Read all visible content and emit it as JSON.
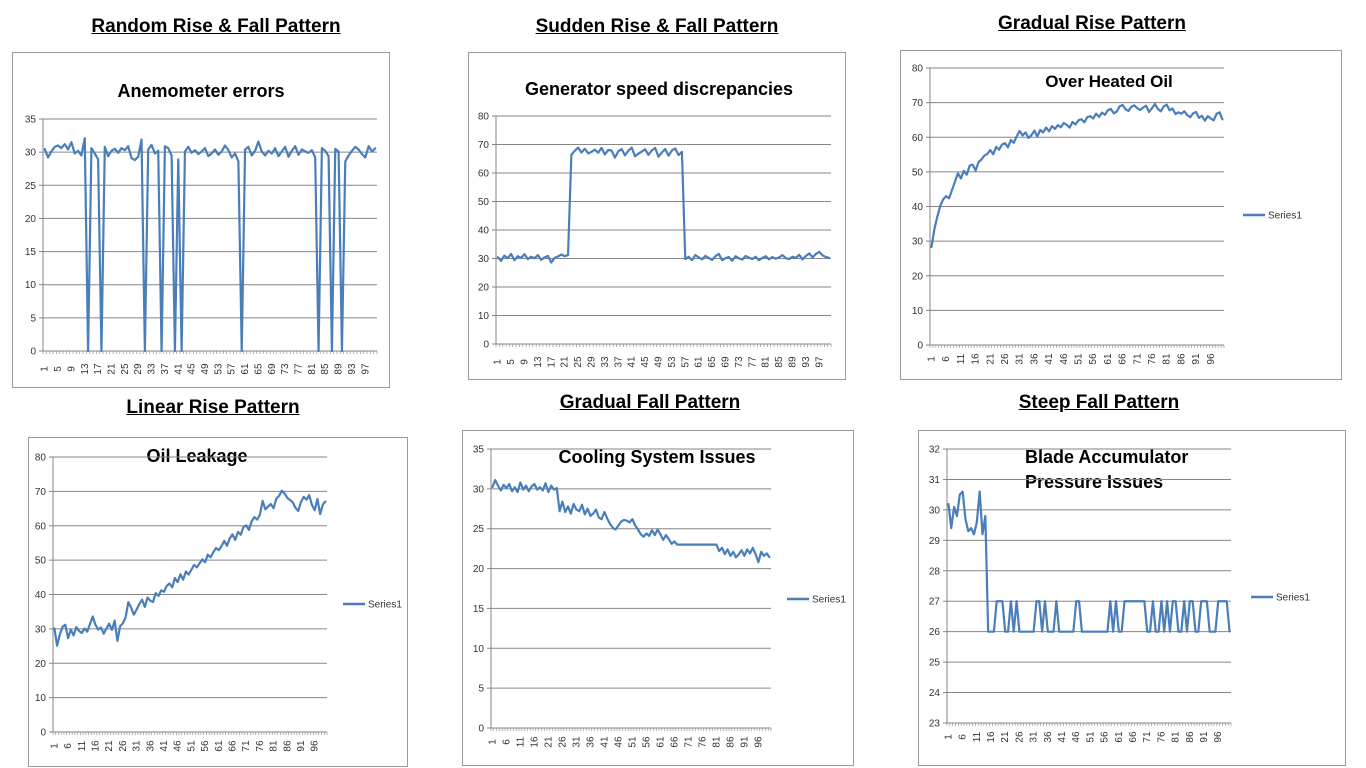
{
  "headings": [
    "Random Rise & Fall Pattern",
    "Sudden Rise & Fall Pattern",
    "Gradual Rise Pattern",
    "Linear Rise Pattern",
    "Gradual Fall Pattern",
    "Steep Fall Pattern"
  ],
  "colors": {
    "line": "#4a7ebb",
    "grid": "#868686",
    "axis": "#868686",
    "border": "#9a9a9a"
  },
  "chart_data": [
    {
      "type": "line",
      "title": "Anemometer errors",
      "ylim": [
        0,
        35
      ],
      "yticks": [
        0,
        5,
        10,
        15,
        20,
        25,
        30,
        35
      ],
      "n": 100,
      "xticks": [
        1,
        5,
        9,
        13,
        17,
        21,
        25,
        29,
        33,
        37,
        41,
        45,
        49,
        53,
        57,
        61,
        65,
        69,
        73,
        77,
        81,
        85,
        89,
        93,
        97
      ],
      "legend": null,
      "grid": true,
      "values": [
        30.5,
        29.2,
        30.1,
        30.8,
        31.0,
        30.6,
        31.2,
        30.4,
        31.5,
        29.8,
        30.2,
        29.5,
        32.1,
        0,
        30.6,
        29.8,
        28.9,
        0,
        30.8,
        29.4,
        30.2,
        30.5,
        29.9,
        30.6,
        30.3,
        30.9,
        29.1,
        28.8,
        29.3,
        31.9,
        0,
        30.4,
        31.1,
        29.8,
        30.2,
        0,
        30.9,
        30.6,
        29.5,
        0,
        28.9,
        0,
        30.1,
        30.8,
        29.9,
        30.3,
        29.7,
        30.1,
        30.6,
        29.4,
        29.8,
        30.4,
        29.6,
        30.1,
        31.0,
        30.3,
        29.2,
        29.8,
        28.6,
        0,
        30.4,
        30.8,
        29.5,
        30.2,
        31.6,
        30.1,
        29.5,
        30.2,
        29.8,
        30.6,
        29.4,
        30.1,
        30.8,
        29.3,
        30.2,
        30.9,
        29.6,
        30.4,
        30.1,
        29.9,
        30.3,
        29.2,
        0,
        30.6,
        30.2,
        29.4,
        0,
        30.5,
        30.1,
        0,
        28.6,
        29.5,
        30.2,
        30.8,
        30.4,
        29.7,
        29.2,
        30.9,
        30.1,
        30.6
      ]
    },
    {
      "type": "line",
      "title": "Generator speed discrepancies",
      "ylim": [
        0,
        80
      ],
      "yticks": [
        0,
        10,
        20,
        30,
        40,
        50,
        60,
        70,
        80
      ],
      "n": 100,
      "xticks": [
        1,
        5,
        9,
        13,
        17,
        21,
        25,
        29,
        33,
        37,
        41,
        45,
        49,
        53,
        57,
        61,
        65,
        69,
        73,
        77,
        81,
        85,
        89,
        93,
        97
      ],
      "legend": null,
      "grid": true,
      "values": [
        30.5,
        29.2,
        31.0,
        30.1,
        31.6,
        29.4,
        30.8,
        30.2,
        31.5,
        29.8,
        30.6,
        30.1,
        31.2,
        29.5,
        30.4,
        30.9,
        28.6,
        30.2,
        30.7,
        31.4,
        30.8,
        31.2,
        66.4,
        67.8,
        68.9,
        67.2,
        68.5,
        66.9,
        67.4,
        68.2,
        67.1,
        68.8,
        66.5,
        68.1,
        67.9,
        65.4,
        67.6,
        68.4,
        66.2,
        67.8,
        68.9,
        65.9,
        66.8,
        67.5,
        68.3,
        66.4,
        67.9,
        68.8,
        65.7,
        67.2,
        68.4,
        66.1,
        67.9,
        68.6,
        66.3,
        67.4,
        29.8,
        30.6,
        29.4,
        31.2,
        30.4,
        29.7,
        30.9,
        30.2,
        29.5,
        30.8,
        31.6,
        29.4,
        30.1,
        30.5,
        29.2,
        30.8,
        30.1,
        29.6,
        30.9,
        30.3,
        29.8,
        30.6,
        29.4,
        30.2,
        30.8,
        29.7,
        30.5,
        29.9,
        30.4,
        31.2,
        30.1,
        29.8,
        30.6,
        30.2,
        31.3,
        29.7,
        30.9,
        31.8,
        30.4,
        31.6,
        32.3,
        31.1,
        30.5,
        30.2
      ]
    },
    {
      "type": "line",
      "title": "Over Heated Oil",
      "ylim": [
        0,
        80
      ],
      "yticks": [
        0,
        10,
        20,
        30,
        40,
        50,
        60,
        70,
        80
      ],
      "n": 100,
      "xticks": [
        1,
        6,
        11,
        16,
        21,
        26,
        31,
        36,
        41,
        46,
        51,
        56,
        61,
        66,
        71,
        76,
        81,
        86,
        91,
        96
      ],
      "legend": "Series1",
      "grid": true,
      "values": [
        28.2,
        33.5,
        37.1,
        40.2,
        42.1,
        43.0,
        42.4,
        44.8,
        47.2,
        49.6,
        48.1,
        50.3,
        49.2,
        51.8,
        52.1,
        50.4,
        52.8,
        53.6,
        54.7,
        55.2,
        56.3,
        55.1,
        57.2,
        56.4,
        57.9,
        58.3,
        57.1,
        59.2,
        58.4,
        60.3,
        61.8,
        60.5,
        61.4,
        59.8,
        60.6,
        61.9,
        60.2,
        62.1,
        61.4,
        62.8,
        61.7,
        63.2,
        62.4,
        63.5,
        62.9,
        64.1,
        63.6,
        62.8,
        64.4,
        63.7,
        64.9,
        65.2,
        64.3,
        65.8,
        66.1,
        65.4,
        66.8,
        65.9,
        67.1,
        66.5,
        67.8,
        68.2,
        66.9,
        67.4,
        68.9,
        69.3,
        68.1,
        67.6,
        68.8,
        69.2,
        68.4,
        67.9,
        68.6,
        69.1,
        67.3,
        68.4,
        69.6,
        68.2,
        67.5,
        68.9,
        69.4,
        67.8,
        68.3,
        66.7,
        67.2,
        66.8,
        67.5,
        66.4,
        65.8,
        66.9,
        67.3,
        65.6,
        66.2,
        64.8,
        66.1,
        65.4,
        64.9,
        66.8,
        67.2,
        65.1
      ]
    },
    {
      "type": "line",
      "title": "Oil Leakage",
      "ylim": [
        0,
        80
      ],
      "yticks": [
        0,
        10,
        20,
        30,
        40,
        50,
        60,
        70,
        80
      ],
      "n": 100,
      "xticks": [
        1,
        6,
        11,
        16,
        21,
        26,
        31,
        36,
        41,
        46,
        51,
        56,
        61,
        66,
        71,
        76,
        81,
        86,
        91,
        96
      ],
      "legend": "Series1",
      "grid": true,
      "values": [
        30.2,
        25.1,
        28.4,
        30.6,
        31.2,
        27.3,
        29.8,
        28.1,
        30.5,
        29.4,
        28.8,
        30.1,
        29.2,
        31.4,
        33.6,
        31.2,
        29.8,
        30.4,
        28.6,
        30.1,
        31.5,
        29.7,
        32.4,
        26.5,
        30.8,
        31.6,
        33.4,
        37.8,
        36.2,
        34.1,
        35.6,
        37.2,
        38.5,
        36.4,
        39.1,
        38.2,
        37.8,
        40.4,
        39.6,
        41.2,
        40.8,
        42.5,
        43.2,
        42.1,
        44.8,
        43.6,
        45.9,
        44.3,
        46.7,
        45.8,
        47.2,
        48.6,
        47.9,
        49.1,
        50.2,
        49.4,
        51.6,
        50.8,
        52.3,
        53.5,
        52.9,
        54.1,
        55.6,
        54.2,
        56.3,
        57.5,
        55.9,
        58.2,
        57.4,
        59.6,
        60.1,
        58.8,
        61.3,
        62.5,
        61.8,
        63.2,
        67.2,
        64.8,
        65.6,
        66.3,
        65.1,
        67.9,
        68.7,
        70.2,
        69.4,
        68.1,
        67.5,
        66.8,
        65.2,
        64.3,
        66.9,
        68.4,
        67.6,
        68.9,
        66.1,
        64.5,
        67.8,
        63.4,
        66.2,
        67.1
      ]
    },
    {
      "type": "line",
      "title": "Cooling System Issues",
      "ylim": [
        0,
        35
      ],
      "yticks": [
        0,
        5,
        10,
        15,
        20,
        25,
        30,
        35
      ],
      "n": 100,
      "xticks": [
        1,
        6,
        11,
        16,
        21,
        26,
        31,
        36,
        41,
        46,
        51,
        56,
        61,
        66,
        71,
        76,
        81,
        86,
        91,
        96
      ],
      "legend": "Series1",
      "grid": true,
      "values": [
        30.2,
        31.1,
        30.4,
        29.8,
        30.5,
        30.1,
        30.6,
        29.7,
        30.2,
        29.6,
        30.8,
        29.9,
        30.4,
        29.7,
        30.3,
        30.6,
        29.9,
        30.2,
        29.8,
        30.7,
        29.6,
        30.4,
        29.9,
        30.1,
        27.2,
        28.4,
        27.1,
        27.8,
        26.9,
        28.1,
        27.4,
        27.2,
        28.0,
        26.8,
        27.5,
        26.6,
        26.9,
        27.4,
        26.4,
        26.2,
        27.1,
        26.3,
        25.6,
        25.1,
        24.9,
        25.4,
        25.9,
        26.1,
        26.0,
        25.8,
        26.2,
        25.4,
        24.9,
        24.3,
        24.0,
        24.4,
        24.1,
        24.8,
        24.2,
        24.9,
        24.3,
        23.6,
        24.2,
        23.7,
        23.1,
        23.4,
        23.0,
        23.0,
        23.0,
        23.0,
        23.0,
        23.0,
        23.0,
        23.0,
        23.0,
        23.0,
        23.0,
        23.0,
        23.0,
        23.0,
        23.0,
        22.2,
        22.6,
        21.8,
        22.4,
        21.6,
        22.1,
        21.4,
        21.8,
        22.3,
        21.6,
        22.4,
        21.9,
        22.6,
        21.8,
        20.8,
        22.1,
        21.6,
        21.9,
        21.4
      ]
    },
    {
      "type": "line",
      "title": "Blade Accumulator Pressure Issues",
      "ylim": [
        23,
        32
      ],
      "yticks": [
        23,
        24,
        25,
        26,
        27,
        28,
        29,
        30,
        31,
        32
      ],
      "n": 100,
      "xticks": [
        1,
        6,
        11,
        16,
        21,
        26,
        31,
        36,
        41,
        46,
        51,
        56,
        61,
        66,
        71,
        76,
        81,
        86,
        91,
        96
      ],
      "legend": "Series1",
      "grid": true,
      "values": [
        30.2,
        29.4,
        30.1,
        29.8,
        30.5,
        30.6,
        29.7,
        29.3,
        29.4,
        29.2,
        29.6,
        30.6,
        29.2,
        29.8,
        26.0,
        26.0,
        26.0,
        27.0,
        27.0,
        27.0,
        26.0,
        26.0,
        27.0,
        26.0,
        27.0,
        26.0,
        26.0,
        26.0,
        26.0,
        26.0,
        26.0,
        27.0,
        27.0,
        26.0,
        27.0,
        26.0,
        26.0,
        26.0,
        27.0,
        26.0,
        26.0,
        26.0,
        26.0,
        26.0,
        26.0,
        27.0,
        27.0,
        26.0,
        26.0,
        26.0,
        26.0,
        26.0,
        26.0,
        26.0,
        26.0,
        26.0,
        26.0,
        27.0,
        26.0,
        27.0,
        26.0,
        26.0,
        27.0,
        27.0,
        27.0,
        27.0,
        27.0,
        27.0,
        27.0,
        27.0,
        26.0,
        26.0,
        27.0,
        26.0,
        26.0,
        27.0,
        26.0,
        27.0,
        26.0,
        27.0,
        27.0,
        26.0,
        26.0,
        27.0,
        26.0,
        27.0,
        27.0,
        26.0,
        26.0,
        27.0,
        27.0,
        27.0,
        26.0,
        26.0,
        26.0,
        27.0,
        27.0,
        27.0,
        27.0,
        26.0
      ]
    }
  ]
}
